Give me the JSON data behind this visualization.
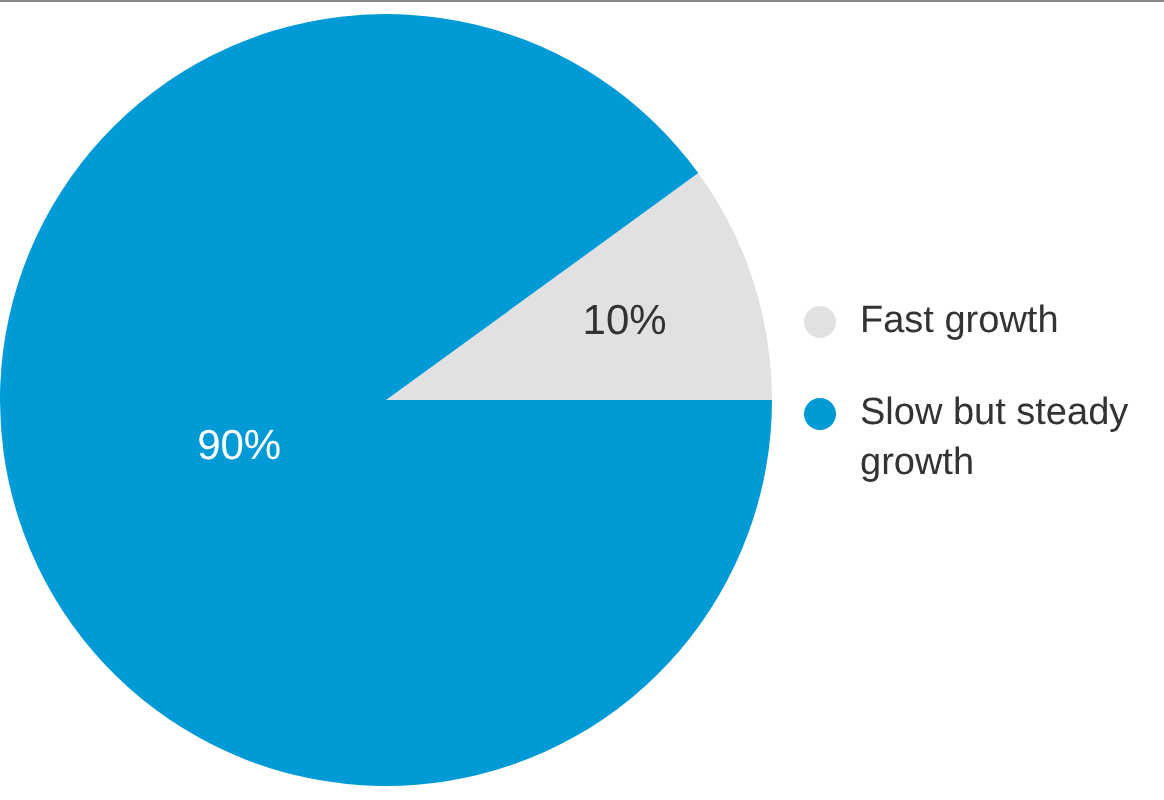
{
  "chart_data": {
    "type": "pie",
    "categories": [
      "Fast growth",
      "Slow but steady growth"
    ],
    "values": [
      10,
      90
    ],
    "colors": [
      "#e1e1e1",
      "#009ad6"
    ],
    "value_labels": [
      "10%",
      "90%"
    ],
    "legend": "right"
  }
}
